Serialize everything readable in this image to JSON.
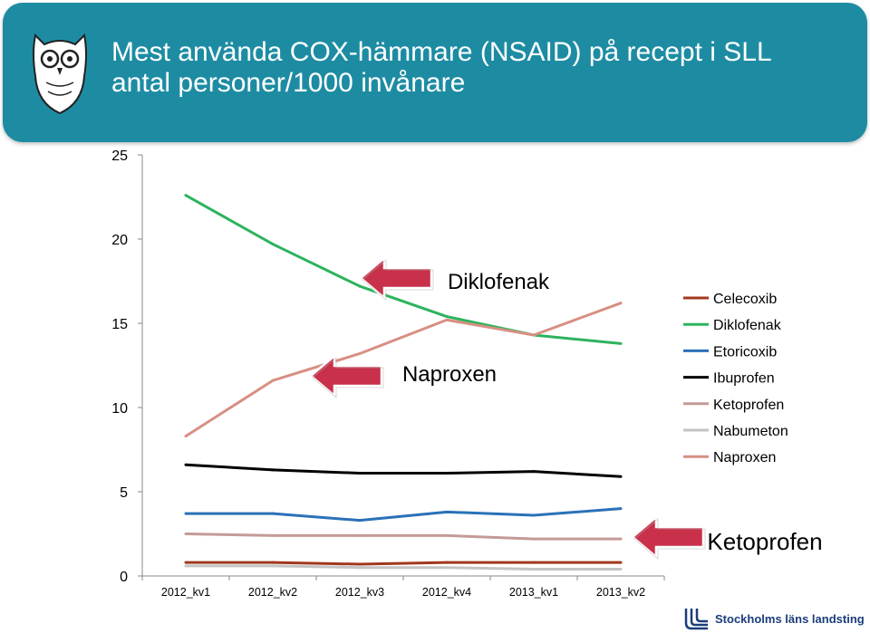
{
  "header": {
    "title_line1": "Mest använda COX-hämmare (NSAID) på recept i SLL",
    "title_line2": "antal personer/1000 invånare",
    "bg_color": "#1d8ca3"
  },
  "chart_data": {
    "type": "line",
    "categories": [
      "2012_kv1",
      "2012_kv2",
      "2012_kv3",
      "2012_kv4",
      "2013_kv1",
      "2013_kv2"
    ],
    "ylim": [
      0,
      25
    ],
    "yticks": [
      0,
      5,
      10,
      15,
      20,
      25
    ],
    "grid": false,
    "legend_position": "right",
    "series": [
      {
        "name": "Celecoxib",
        "color": "#a0381c",
        "values": [
          0.8,
          0.8,
          0.7,
          0.8,
          0.8,
          0.8
        ]
      },
      {
        "name": "Diklofenak",
        "color": "#2db35e",
        "values": [
          22.6,
          19.7,
          17.2,
          15.4,
          14.3,
          13.8
        ]
      },
      {
        "name": "Etoricoxib",
        "color": "#2a71b8",
        "values": [
          3.7,
          3.7,
          3.3,
          3.8,
          3.6,
          4.0
        ]
      },
      {
        "name": "Ibuprofen",
        "color": "#000000",
        "values": [
          6.6,
          6.3,
          6.1,
          6.1,
          6.2,
          5.9
        ]
      },
      {
        "name": "Ketoprofen",
        "color": "#c49a98",
        "values": [
          2.5,
          2.4,
          2.4,
          2.4,
          2.2,
          2.2
        ]
      },
      {
        "name": "Nabumeton",
        "color": "#c3c3c3",
        "values": [
          0.6,
          0.6,
          0.5,
          0.5,
          0.4,
          0.4
        ]
      },
      {
        "name": "Naproxen",
        "color": "#d88f83",
        "values": [
          8.3,
          11.6,
          13.2,
          15.2,
          14.3,
          16.2
        ]
      }
    ],
    "annotations": [
      {
        "text": "Diklofenak",
        "series": "Diklofenak"
      },
      {
        "text": "Naproxen",
        "series": "Naproxen"
      },
      {
        "text": "Ketoprofen",
        "series": "Ketoprofen"
      }
    ],
    "arrow_color": "#c9304a"
  },
  "footer": {
    "logo_text": "Stockholms läns landsting"
  }
}
